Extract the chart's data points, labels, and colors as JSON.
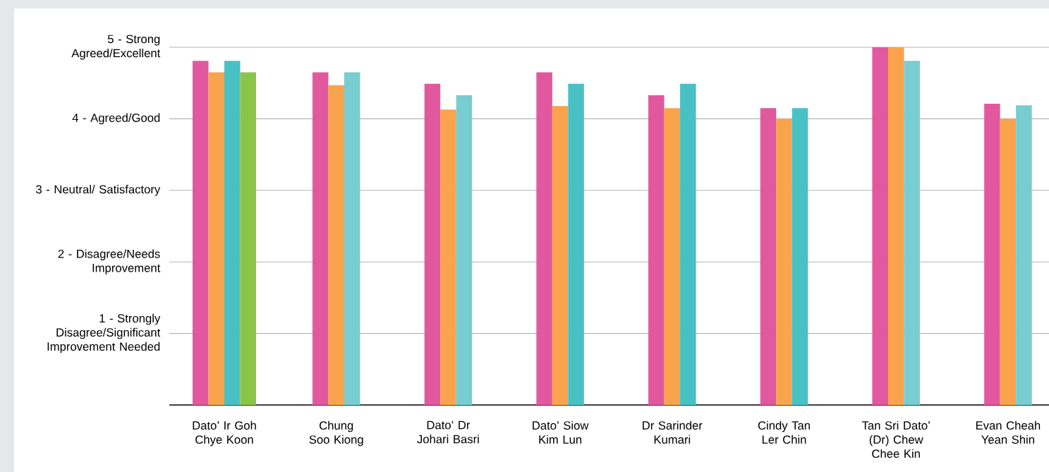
{
  "chart_data": {
    "type": "bar",
    "categories": [
      "Dato’ Ir Goh Chye Koon",
      "Chung Soo Kiong",
      "Dato’ Dr Johari Basri",
      "Dato’ Siow Kim Lun",
      "Dr Sarinder Kumari",
      "Cindy Tan Ler Chin",
      "Tan Sri Dato’ (Dr) Chew Chee Kin",
      "Evan Cheah Yean Shin"
    ],
    "series": [
      {
        "color": "#e2589e",
        "values": [
          4.81,
          4.65,
          4.49,
          4.65,
          4.33,
          4.15,
          5.0,
          4.21
        ]
      },
      {
        "color": "#f9a34c",
        "values": [
          4.65,
          4.47,
          4.13,
          4.18,
          4.15,
          4.0,
          5.0,
          4.0
        ]
      },
      {
        "colors": [
          "#48c1c5",
          "#77cdcf",
          "#77cdcf",
          "#48c1c5",
          "#48c1c5",
          "#48c1c5",
          "#77cdcf",
          "#77cdcf"
        ],
        "values": [
          4.81,
          4.65,
          4.33,
          4.49,
          4.49,
          4.15,
          4.81,
          4.19
        ]
      },
      {
        "color": "#8bc548",
        "values": [
          4.65,
          null,
          null,
          null,
          null,
          null,
          null,
          null
        ]
      }
    ],
    "ylim": [
      0,
      5
    ],
    "yticks": [
      {
        "value": 1,
        "label": "1 - Strongly Disagree/Significant Improvement Needed"
      },
      {
        "value": 2,
        "label": "2 - Disagree/Needs Improvement"
      },
      {
        "value": 3,
        "label": "3 - Neutral/ Satisfactory"
      },
      {
        "value": 4,
        "label": "4 - Agreed/Good"
      },
      {
        "value": 5,
        "label": "5 - Strong Agreed/Excellent"
      }
    ],
    "grid": "y"
  }
}
